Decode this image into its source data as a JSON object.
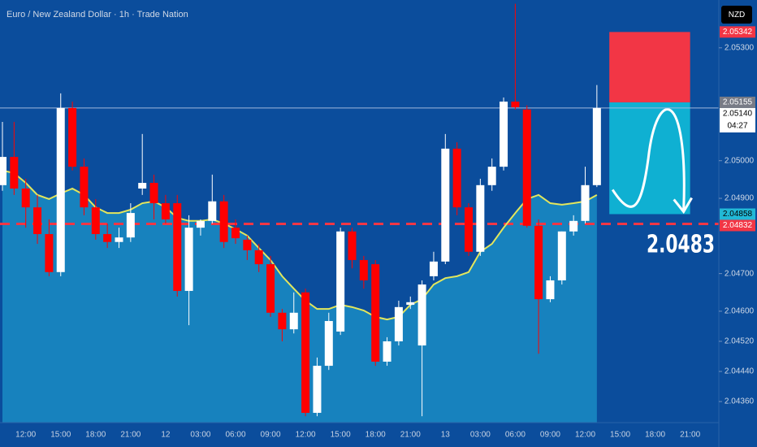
{
  "chart_data": {
    "type": "candlestick",
    "title": "Euro / New Zealand Dollar · 1h · Trade Nation",
    "currency": "NZD",
    "categories": [
      null,
      null,
      "12:00",
      null,
      null,
      "15:00",
      null,
      null,
      "18:00",
      null,
      null,
      "21:00",
      null,
      null,
      "12",
      null,
      null,
      "03:00",
      null,
      null,
      "06:00",
      null,
      null,
      "09:00",
      null,
      null,
      "12:00",
      null,
      null,
      "15:00",
      null,
      null,
      "18:00",
      null,
      null,
      "21:00",
      null,
      null,
      "13",
      null,
      null,
      "03:00",
      null,
      null,
      "06:00",
      null,
      null,
      "09:00",
      null,
      null,
      "12:00",
      null,
      null,
      "15:00",
      null,
      null,
      "18:00",
      null,
      null,
      "21:00",
      null
    ],
    "open": [
      2.04935,
      2.0501,
      2.04926,
      2.04876,
      2.04805,
      2.04704,
      2.0514,
      2.04984,
      2.04876,
      2.04805,
      2.04784,
      2.04796,
      2.04926,
      2.04941,
      2.04887,
      2.04887,
      2.04654,
      2.04822,
      2.0484,
      2.04892,
      2.04822,
      2.0479,
      2.04762,
      2.04725,
      2.04596,
      2.04552,
      2.0465,
      2.0433,
      2.04455,
      2.04546,
      2.04812,
      2.04736,
      2.04725,
      2.04466,
      2.0452,
      2.04617,
      2.04509,
      2.04693,
      2.04732,
      2.05032,
      2.04876,
      2.04758,
      2.04935,
      2.04984,
      2.05157,
      2.05136,
      2.04827,
      2.04632,
      2.04682,
      2.04812,
      2.0484,
      2.04935,
      null,
      null,
      null,
      null,
      null,
      null,
      null,
      null,
      null
    ],
    "high": [
      2.05103,
      2.05103,
      2.04952,
      2.04909,
      2.04844,
      2.05179,
      2.05157,
      2.05006,
      2.04898,
      2.04833,
      2.04822,
      2.04887,
      2.05071,
      2.04963,
      2.04909,
      2.04909,
      2.04855,
      2.04844,
      2.04963,
      2.04909,
      2.04844,
      2.04801,
      2.04779,
      2.04747,
      2.04606,
      2.0465,
      2.0466,
      2.04477,
      2.04596,
      2.04822,
      2.04822,
      2.04747,
      2.04736,
      2.04531,
      2.04628,
      2.04639,
      2.04682,
      2.04758,
      2.05071,
      2.05049,
      2.04887,
      2.04952,
      2.05006,
      2.05168,
      2.05417,
      2.05147,
      2.04844,
      2.04693,
      2.04812,
      2.04855,
      2.04984,
      2.05201,
      null,
      null,
      null,
      null,
      null,
      null,
      null,
      null,
      null
    ],
    "low": [
      2.0492,
      2.04909,
      2.04822,
      2.04779,
      2.04693,
      2.04693,
      2.04974,
      2.04855,
      2.0479,
      2.04768,
      2.04768,
      2.04784,
      2.04909,
      2.04844,
      2.04833,
      2.04639,
      2.04563,
      2.04801,
      2.04833,
      2.04768,
      2.04779,
      2.04736,
      2.04704,
      2.04585,
      2.0452,
      2.04541,
      2.04321,
      2.04321,
      2.04444,
      2.04537,
      2.04714,
      2.0466,
      2.04455,
      2.04455,
      2.04509,
      2.04606,
      2.04321,
      2.04682,
      2.04725,
      2.04855,
      2.04747,
      2.04747,
      2.0492,
      2.04974,
      2.05136,
      2.04822,
      2.04487,
      2.04624,
      2.04671,
      2.04801,
      2.04833,
      2.0493,
      null,
      null,
      null,
      null,
      null,
      null,
      null,
      null,
      null
    ],
    "close": [
      2.0501,
      2.04926,
      2.04876,
      2.04805,
      2.04704,
      2.0514,
      2.04984,
      2.04876,
      2.04805,
      2.04784,
      2.04796,
      2.04861,
      2.04941,
      2.04887,
      2.04844,
      2.04654,
      2.04822,
      2.0484,
      2.04892,
      2.04784,
      2.04794,
      2.04762,
      2.04725,
      2.04596,
      2.04552,
      2.04596,
      2.0433,
      2.04455,
      2.04574,
      2.04812,
      2.04736,
      2.04682,
      2.04466,
      2.0452,
      2.04611,
      2.04624,
      2.04671,
      2.04732,
      2.05032,
      2.04876,
      2.04758,
      2.04935,
      2.04984,
      2.05157,
      2.05142,
      2.04827,
      2.04632,
      2.04682,
      2.04812,
      2.0484,
      2.04935,
      2.0514,
      null,
      null,
      null,
      null,
      null,
      null,
      null,
      null,
      null
    ],
    "up_color": "#ffffff",
    "down_color": "#ff0000",
    "ma": {
      "color": "#e3e65c",
      "area_color": "#1a8cc4",
      "values": [
        2.04974,
        2.04967,
        2.04941,
        2.04909,
        2.04898,
        2.04913,
        2.04926,
        2.04909,
        2.04876,
        2.04861,
        2.04861,
        2.0487,
        2.04887,
        2.04892,
        2.04876,
        2.04848,
        2.0484,
        2.0484,
        2.04844,
        2.04833,
        2.04818,
        2.04801,
        2.04768,
        2.04736,
        2.04693,
        2.0466,
        2.04628,
        2.04606,
        2.04606,
        2.04617,
        2.04611,
        2.04602,
        2.04585,
        2.04578,
        2.04585,
        2.04617,
        2.04632,
        2.04671,
        2.04688,
        2.04693,
        2.04704,
        2.04758,
        2.04779,
        2.04822,
        2.04861,
        2.04898,
        2.04909,
        2.04887,
        2.04883,
        2.04887,
        2.04892,
        2.04909,
        null,
        null,
        null,
        null,
        null,
        null,
        null,
        null,
        null
      ]
    },
    "ylim": [
      2.04304,
      2.05427
    ],
    "yticks": [
      {
        "value": 2.053,
        "label": "2.05300"
      },
      {
        "value": 2.05,
        "label": "2.05000"
      },
      {
        "value": 2.049,
        "label": "2.04900"
      },
      {
        "value": 2.047,
        "label": "2.04700"
      },
      {
        "value": 2.046,
        "label": "2.04600"
      },
      {
        "value": 2.0452,
        "label": "2.04520"
      },
      {
        "value": 2.0444,
        "label": "2.04440"
      },
      {
        "value": 2.0436,
        "label": "2.04360"
      }
    ],
    "markers": [
      {
        "price": 2.05342,
        "color": "#f23645",
        "text_color": "#ffffff"
      },
      {
        "price": 2.05155,
        "color": "#787b86",
        "text_color": "#ffffff"
      },
      {
        "price": {
          "value": 2.0514,
          "label": "2.05140"
        },
        "note": "04:27",
        "color": "#ffffff",
        "text_color": "#000000",
        "line": "solid"
      },
      {
        "price": 2.04858,
        "color": "#22b8d6",
        "text_color": "#000000"
      },
      {
        "price": 2.04832,
        "color": "#f23645",
        "text_color": "#ffffff",
        "line": "dashed"
      }
    ],
    "position": {
      "stop_color": "#f23645",
      "target_color": "#0fb0d2"
    },
    "annotation": "2.0483"
  }
}
